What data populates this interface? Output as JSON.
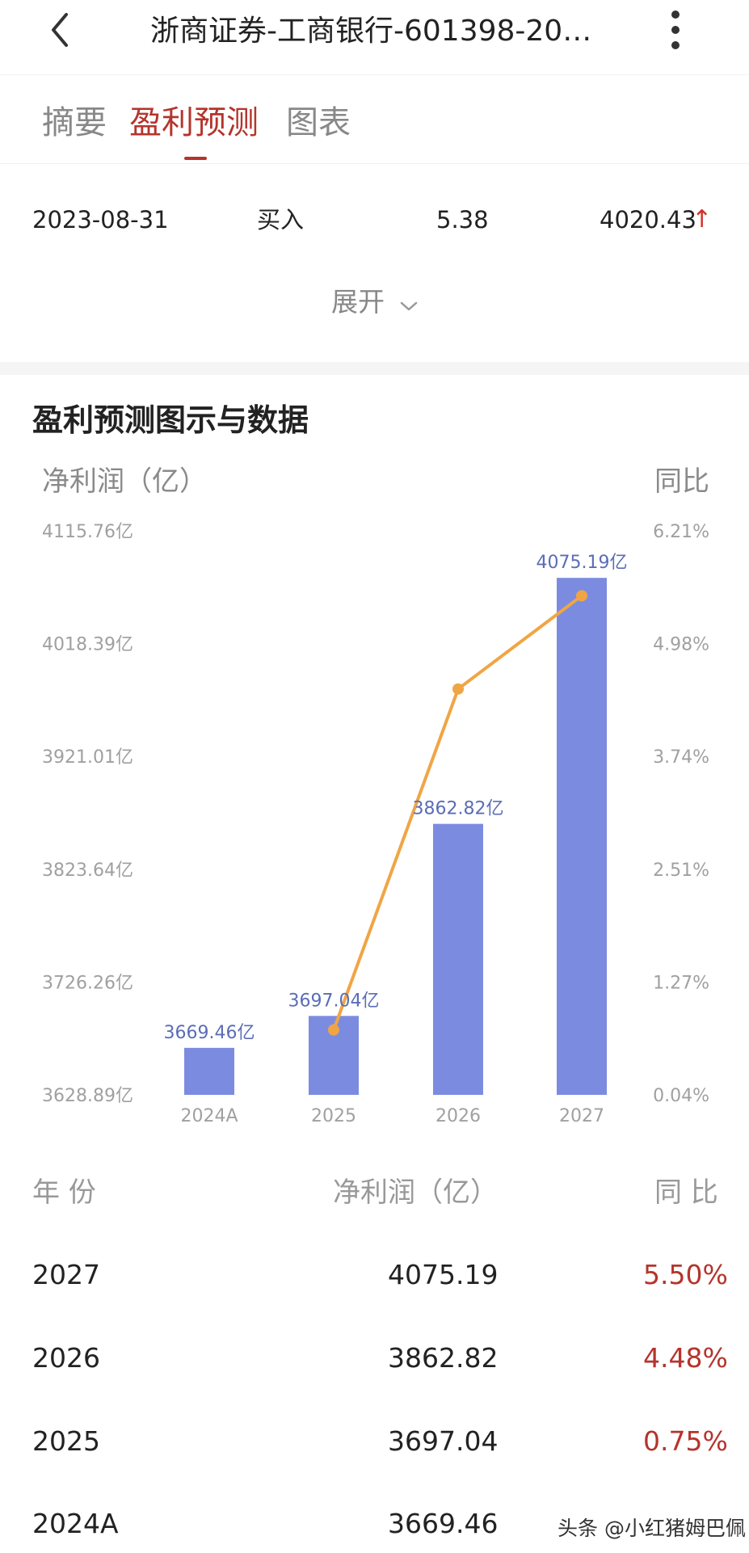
{
  "header": {
    "title": "浙商证券-工商银行-601398-20…",
    "back_icon": "chevron-left-icon",
    "more_icon": "more-vertical-icon"
  },
  "tabs": [
    {
      "label": "摘要",
      "active": false
    },
    {
      "label": "盈利预测",
      "active": true
    },
    {
      "label": "图表",
      "active": false
    }
  ],
  "rating": {
    "date": "2023-08-31",
    "action": "买入",
    "price": "5.38",
    "value": "4020.43",
    "arrow": "↑"
  },
  "expand": {
    "label": "展开"
  },
  "section_title": "盈利预测图示与数据",
  "colors": {
    "bar": "#7b8ce0",
    "line": "#f0a544",
    "accent": "#b5342c",
    "arrow_up": "#d4322b"
  },
  "chart_data": {
    "type": "bar",
    "left_axis_title": "净利润（亿）",
    "right_axis_title": "同比",
    "categories": [
      "2024A",
      "2025",
      "2026",
      "2027"
    ],
    "y_ticks": [
      "3628.89亿",
      "3726.26亿",
      "3823.64亿",
      "3921.01亿",
      "4018.39亿",
      "4115.76亿"
    ],
    "y2_ticks": [
      "0.04%",
      "1.27%",
      "2.51%",
      "3.74%",
      "4.98%",
      "6.21%"
    ],
    "ylim": [
      3628.89,
      4115.76
    ],
    "y2lim": [
      0.04,
      6.21
    ],
    "series": [
      {
        "kind": "bar",
        "values": [
          3669.46,
          3697.04,
          3862.82,
          4075.19
        ],
        "labels": [
          "3669.46亿",
          "3697.04亿",
          "3862.82亿",
          "4075.19亿"
        ]
      },
      {
        "kind": "line",
        "axis": "right",
        "values": [
          null,
          0.75,
          4.48,
          5.5
        ]
      }
    ],
    "grid": false
  },
  "table": {
    "headers": {
      "year": "年 份",
      "profit": "净利润（亿）",
      "yoy": "同 比"
    },
    "rows": [
      {
        "year": "2027",
        "profit": "4075.19",
        "yoy": "5.50%"
      },
      {
        "year": "2026",
        "profit": "3862.82",
        "yoy": "4.48%"
      },
      {
        "year": "2025",
        "profit": "3697.04",
        "yoy": "0.75%"
      },
      {
        "year": "2024A",
        "profit": "3669.46",
        "yoy": ""
      }
    ]
  },
  "watermark": "头条 @小红猪姆巴佩"
}
